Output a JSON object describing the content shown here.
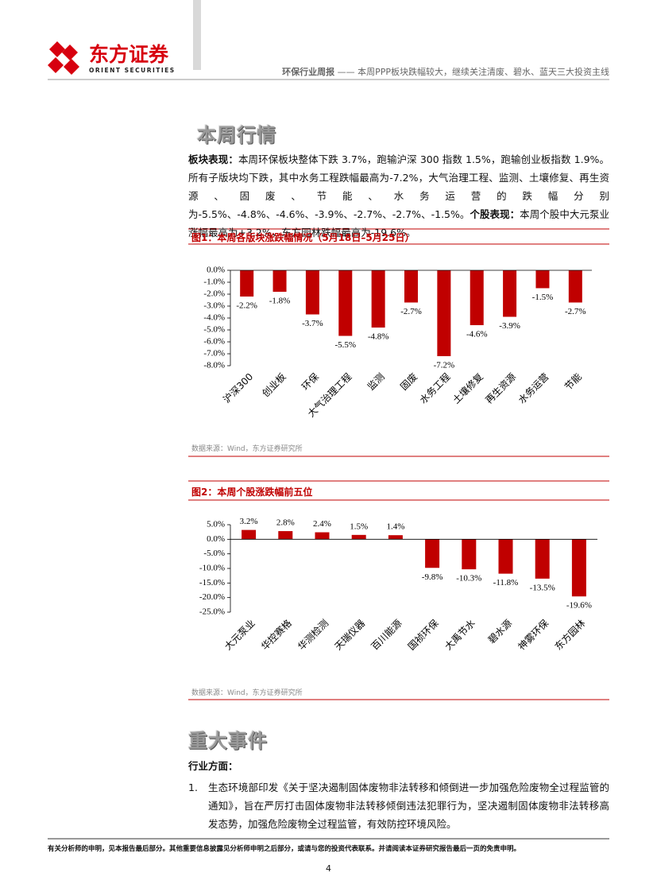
{
  "header": {
    "logo_cn": "东方证券",
    "logo_en": "ORIENT SECURITIES",
    "report_title": "环保行业周报",
    "report_subtitle": "—— 本周PPP板块跌幅较大，继续关注清废、碧水、蓝天三大投资主线"
  },
  "section1": {
    "title": "本周行情",
    "paragraph": [
      {
        "label": "板块表现：",
        "text": "本周环保板块整体下跌 3.7%，跑输沪深 300 指数 1.5%，跑输创业板指数 1.9%。所有子版块均下跌，其中水务工程跌幅最高为-7.2%，大气治理工程、监测、土壤修复、再生资源、固废、节能、水务运营的跌幅分别为-5.5%、-4.8%、-4.6%、-3.9%、-2.7%、-2.7%、-1.5%。"
      },
      {
        "label": "个股表现：",
        "text": "本周个股中大元泵业涨幅最高为+3.2%，东方园林跌幅最高为-19.6%。"
      }
    ]
  },
  "chart_data": [
    {
      "type": "bar",
      "title": "图1：本周各版块涨跌幅情况（5月18日–5月25日）",
      "source": "数据来源：Wind，东方证券研究所",
      "categories": [
        "沪深300",
        "创业板",
        "环保",
        "大气治理工程",
        "监测",
        "固废",
        "水务工程",
        "土壤修复",
        "再生资源",
        "水务运营",
        "节能"
      ],
      "values": [
        -2.2,
        -1.8,
        -3.7,
        -5.5,
        -4.8,
        -2.7,
        -7.2,
        -4.6,
        -3.9,
        -1.5,
        -2.7
      ],
      "value_labels": [
        "-2.2%",
        "-1.8%",
        "-3.7%",
        "-5.5%",
        "-4.8%",
        "-2.7%",
        "-7.2%",
        "-4.6%",
        "-3.9%",
        "-1.5%",
        "-2.7%"
      ],
      "color": "#c00000",
      "ylim": [
        -8,
        0
      ],
      "yticks": [
        {
          "value": 0,
          "label": "0.0%"
        },
        {
          "value": -1,
          "label": "-1.0%"
        },
        {
          "value": -2,
          "label": "-2.0%"
        },
        {
          "value": -3,
          "label": "-3.0%"
        },
        {
          "value": -4,
          "label": "-4.0%"
        },
        {
          "value": -5,
          "label": "-5.0%"
        },
        {
          "value": -6,
          "label": "-6.0%"
        },
        {
          "value": -7,
          "label": "-7.0%"
        },
        {
          "value": -8,
          "label": "-8.0%"
        }
      ]
    },
    {
      "type": "bar",
      "title": "图2：本周个股涨跌幅前五位",
      "source": "数据来源：Wind，东方证券研究所",
      "categories": [
        "大元泵业",
        "华控赛格",
        "华测检测",
        "天瑞仪器",
        "百川能源",
        "国祯环保",
        "大禹节水",
        "碧水源",
        "神雾环保",
        "东方园林"
      ],
      "values": [
        3.2,
        2.8,
        2.4,
        1.5,
        1.4,
        -9.8,
        -10.3,
        -11.8,
        -13.5,
        -19.6
      ],
      "value_labels": [
        "3.2%",
        "2.8%",
        "2.4%",
        "1.5%",
        "1.4%",
        "-9.8%",
        "-10.3%",
        "-11.8%",
        "-13.5%",
        "-19.6%"
      ],
      "color": "#c00000",
      "ylim": [
        -25,
        5
      ],
      "yticks": [
        {
          "value": 5,
          "label": "5.0%"
        },
        {
          "value": 0,
          "label": "0.0%"
        },
        {
          "value": -5,
          "label": "-5.0%"
        },
        {
          "value": -10,
          "label": "-10.0%"
        },
        {
          "value": -15,
          "label": "-15.0%"
        },
        {
          "value": -20,
          "label": "-20.0%"
        },
        {
          "value": -25,
          "label": "-25.0%"
        }
      ]
    }
  ],
  "section2": {
    "title": "重大事件",
    "subheading": "行业方面：",
    "items": [
      {
        "number": "1.",
        "text": "生态环境部印发《关于坚决遏制固体废物非法转移和倾倒进一步加强危险废物全过程监管的通知》，旨在严厉打击固体废物非法转移倾倒违法犯罪行为，坚决遏制固体废物非法转移高发态势，加强危险废物全过程监管，有效防控环境风险。"
      }
    ]
  },
  "footer": {
    "disclaimer": "有关分析师的申明，见本报告最后部分。其他重要信息披露见分析师申明之后部分，或请与您的投资代表联系。并请阅读本证券研究报告最后一页的免责申明。",
    "page_number": "4"
  }
}
